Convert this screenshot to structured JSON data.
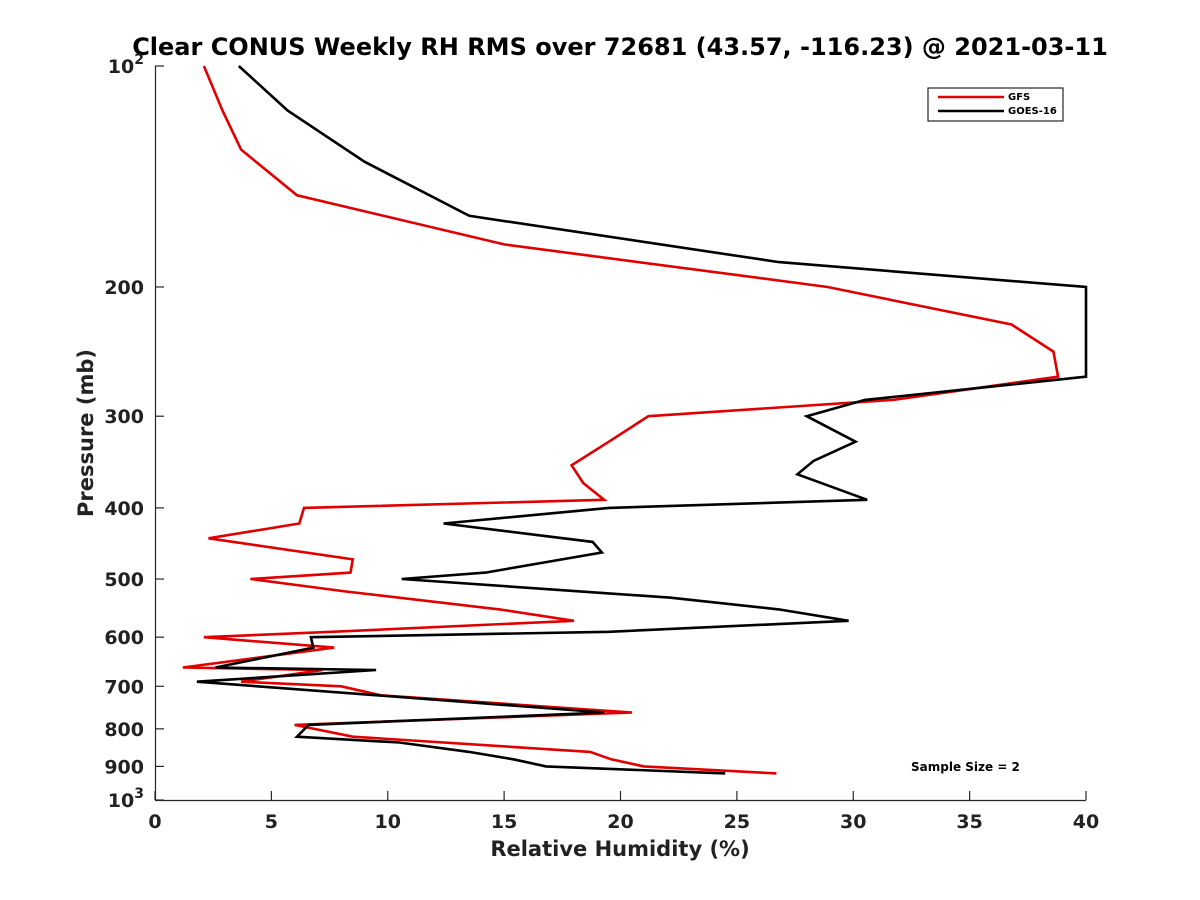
{
  "chart_data": {
    "type": "line",
    "title": "Clear CONUS Weekly RH RMS over 72681 (43.57, -116.23) @ 2021-03-11",
    "xlabel": "Relative Humidity (%)",
    "ylabel": "Pressure (mb)",
    "xlim": [
      0,
      40
    ],
    "ylim": [
      100,
      1000
    ],
    "yscale": "log",
    "y_reversed": true,
    "grid": false,
    "legend_position": "top-right",
    "x_ticks": [
      "0",
      "5",
      "10",
      "15",
      "20",
      "25",
      "30",
      "35",
      "40"
    ],
    "y_ticks": [
      {
        "value": 100,
        "base": "10",
        "exp": "2",
        "label": ""
      },
      {
        "value": 200,
        "label": "200"
      },
      {
        "value": 300,
        "label": "300"
      },
      {
        "value": 400,
        "label": "400"
      },
      {
        "value": 500,
        "label": "500"
      },
      {
        "value": 600,
        "label": "600"
      },
      {
        "value": 700,
        "label": "700"
      },
      {
        "value": 800,
        "label": "800"
      },
      {
        "value": 900,
        "label": "900"
      },
      {
        "value": 1000,
        "base": "10",
        "exp": "3",
        "label": ""
      }
    ],
    "annotation": "Sample Size = 2",
    "series": [
      {
        "name": "GFS",
        "color": "#e00000",
        "points": [
          [
            2.1,
            100
          ],
          [
            2.9,
            115
          ],
          [
            3.7,
            130
          ],
          [
            6.1,
            150
          ],
          [
            15.0,
            175
          ],
          [
            28.9,
            200
          ],
          [
            36.8,
            225
          ],
          [
            38.6,
            245
          ],
          [
            38.8,
            265
          ],
          [
            31.7,
            285
          ],
          [
            21.2,
            300
          ],
          [
            19.5,
            325
          ],
          [
            17.9,
            350
          ],
          [
            18.4,
            370
          ],
          [
            19.3,
            390
          ],
          [
            6.4,
            400
          ],
          [
            6.2,
            420
          ],
          [
            2.3,
            440
          ],
          [
            8.5,
            470
          ],
          [
            8.4,
            490
          ],
          [
            4.1,
            500
          ],
          [
            8.2,
            520
          ],
          [
            14.8,
            550
          ],
          [
            18.0,
            570
          ],
          [
            7.6,
            590
          ],
          [
            2.1,
            600
          ],
          [
            7.7,
            620
          ],
          [
            1.2,
            660
          ],
          [
            7.2,
            665
          ],
          [
            3.7,
            690
          ],
          [
            8.0,
            700
          ],
          [
            9.7,
            720
          ],
          [
            20.5,
            760
          ],
          [
            6.0,
            790
          ],
          [
            8.5,
            820
          ],
          [
            18.7,
            860
          ],
          [
            19.6,
            880
          ],
          [
            21.0,
            900
          ],
          [
            26.7,
            920
          ]
        ]
      },
      {
        "name": "GOES-16",
        "color": "#000000",
        "points": [
          [
            3.6,
            100
          ],
          [
            5.7,
            115
          ],
          [
            9.0,
            135
          ],
          [
            13.5,
            160
          ],
          [
            26.8,
            185
          ],
          [
            40.0,
            200
          ],
          [
            40.0,
            265
          ],
          [
            30.5,
            285
          ],
          [
            28.0,
            300
          ],
          [
            30.1,
            325
          ],
          [
            28.3,
            345
          ],
          [
            27.6,
            360
          ],
          [
            30.6,
            390
          ],
          [
            19.5,
            400
          ],
          [
            12.4,
            420
          ],
          [
            18.8,
            445
          ],
          [
            19.2,
            460
          ],
          [
            14.2,
            490
          ],
          [
            10.6,
            500
          ],
          [
            22.1,
            530
          ],
          [
            26.8,
            550
          ],
          [
            29.8,
            570
          ],
          [
            19.5,
            590
          ],
          [
            6.7,
            600
          ],
          [
            6.8,
            620
          ],
          [
            2.6,
            660
          ],
          [
            9.5,
            665
          ],
          [
            1.8,
            690
          ],
          [
            19.3,
            760
          ],
          [
            6.6,
            790
          ],
          [
            6.1,
            820
          ],
          [
            10.5,
            835
          ],
          [
            13.5,
            860
          ],
          [
            15.4,
            880
          ],
          [
            16.8,
            900
          ],
          [
            24.5,
            920
          ]
        ]
      }
    ]
  }
}
